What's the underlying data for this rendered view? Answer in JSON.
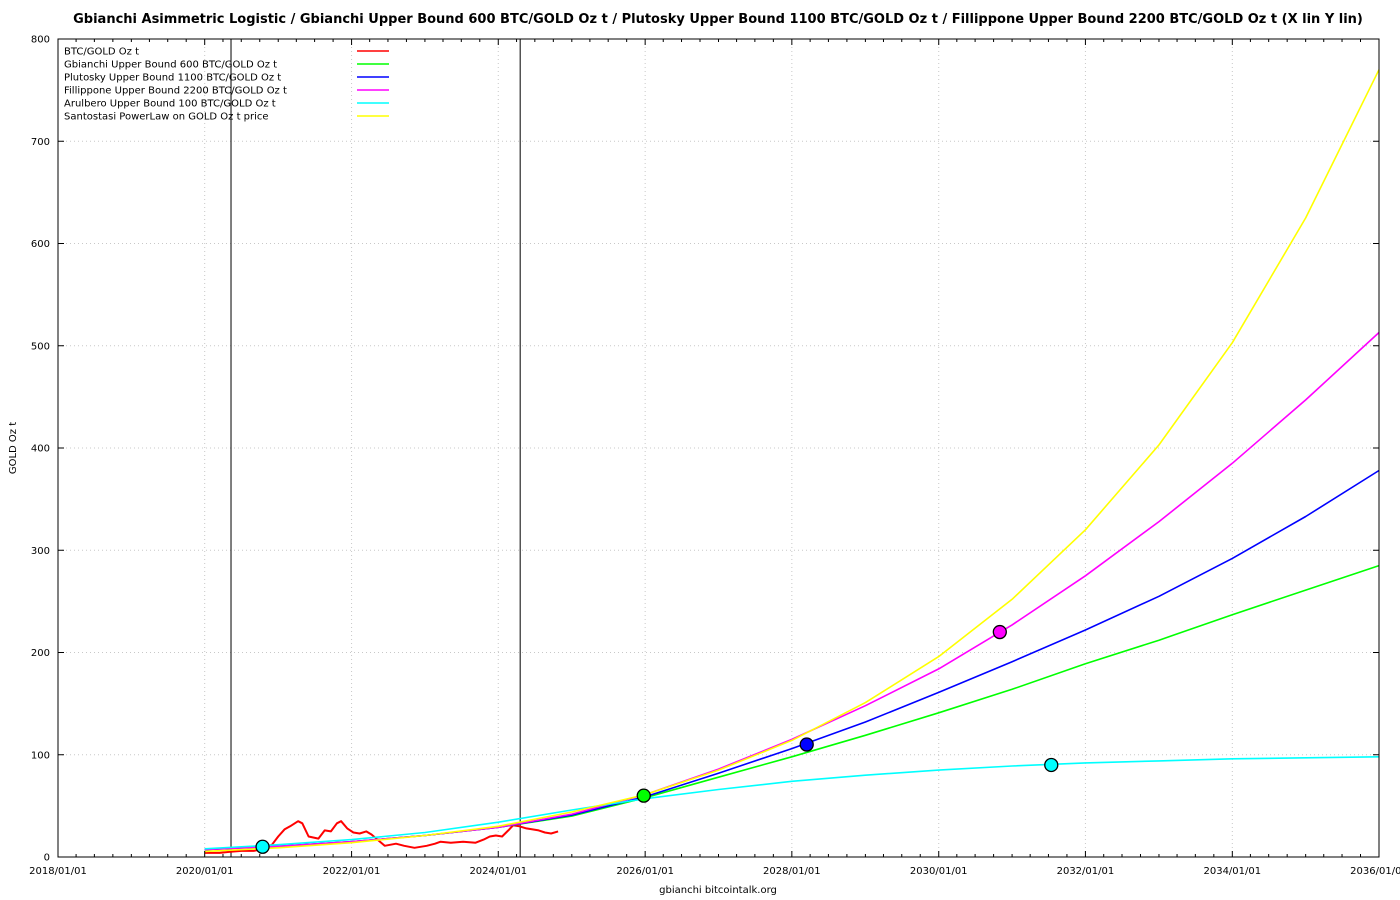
{
  "chart_data": {
    "type": "line",
    "title": "Gbianchi Asimmetric Logistic / Gbianchi Upper Bound 600  BTC/GOLD Oz t / Plutosky Upper Bound 1100  BTC/GOLD Oz t / Fillippone Upper Bound 2200  BTC/GOLD Oz t  (X lin Y lin)",
    "xlabel": "gbianchi bitcointalk.org",
    "ylabel": "GOLD Oz t",
    "x_range": [
      "2018/01/01",
      "2036/01/01"
    ],
    "ylim": [
      0,
      800
    ],
    "x_ticks": [
      "2018/01/01",
      "2020/01/01",
      "2022/01/01",
      "2024/01/01",
      "2026/01/01",
      "2028/01/01",
      "2030/01/01",
      "2032/01/01",
      "2034/01/01",
      "2036/01/01"
    ],
    "y_ticks": [
      0,
      100,
      200,
      300,
      400,
      500,
      600,
      700,
      800
    ],
    "grid": true,
    "legend_position": "top-left",
    "vertical_markers": [
      "2020/05/11",
      "2024/04/19"
    ],
    "series": [
      {
        "name": "BTC/GOLD Oz t",
        "color": "#ff0000",
        "points": [
          [
            "2020/01/01",
            4
          ],
          [
            "2020/03/15",
            4
          ],
          [
            "2020/05/01",
            5
          ],
          [
            "2020/07/01",
            6
          ],
          [
            "2020/09/01",
            6
          ],
          [
            "2020/10/20",
            8
          ],
          [
            "2020/12/01",
            12
          ],
          [
            "2021/01/01",
            20
          ],
          [
            "2021/02/01",
            27
          ],
          [
            "2021/03/01",
            30
          ],
          [
            "2021/04/10",
            35
          ],
          [
            "2021/05/01",
            33
          ],
          [
            "2021/06/01",
            20
          ],
          [
            "2021/07/20",
            18
          ],
          [
            "2021/08/20",
            26
          ],
          [
            "2021/09/20",
            25
          ],
          [
            "2021/10/20",
            33
          ],
          [
            "2021/11/10",
            35
          ],
          [
            "2021/12/10",
            28
          ],
          [
            "2022/01/10",
            24
          ],
          [
            "2022/02/10",
            23
          ],
          [
            "2022/03/15",
            25
          ],
          [
            "2022/04/10",
            22
          ],
          [
            "2022/05/10",
            17
          ],
          [
            "2022/06/15",
            11
          ],
          [
            "2022/08/10",
            13
          ],
          [
            "2022/09/20",
            11
          ],
          [
            "2022/11/10",
            9
          ],
          [
            "2023/01/10",
            11
          ],
          [
            "2023/02/20",
            13
          ],
          [
            "2023/03/20",
            15
          ],
          [
            "2023/05/10",
            14
          ],
          [
            "2023/07/10",
            15
          ],
          [
            "2023/09/10",
            14
          ],
          [
            "2023/10/20",
            17
          ],
          [
            "2023/11/20",
            20
          ],
          [
            "2023/12/20",
            21
          ],
          [
            "2024/01/20",
            20
          ],
          [
            "2024/02/20",
            26
          ],
          [
            "2024/03/15",
            31
          ],
          [
            "2024/04/15",
            30
          ],
          [
            "2024/05/20",
            28
          ],
          [
            "2024/06/20",
            27
          ],
          [
            "2024/07/20",
            26
          ],
          [
            "2024/08/20",
            24
          ],
          [
            "2024/09/20",
            23
          ],
          [
            "2024/10/25",
            25
          ]
        ]
      },
      {
        "name": "Gbianchi Upper Bound 600  BTC/GOLD Oz t",
        "color": "#00ff00",
        "points": [
          [
            "2020/01/01",
            7.2
          ],
          [
            "2021/01/01",
            10.5
          ],
          [
            "2022/01/01",
            15
          ],
          [
            "2023/01/01",
            21
          ],
          [
            "2024/01/01",
            29
          ],
          [
            "2025/01/01",
            40
          ],
          [
            "2026/01/01",
            58
          ],
          [
            "2027/01/01",
            78
          ],
          [
            "2028/01/01",
            98
          ],
          [
            "2029/01/01",
            119
          ],
          [
            "2030/01/01",
            141
          ],
          [
            "2031/01/01",
            164
          ],
          [
            "2032/01/01",
            189
          ],
          [
            "2033/01/01",
            212
          ],
          [
            "2034/01/01",
            237
          ],
          [
            "2035/01/01",
            261
          ],
          [
            "2036/01/01",
            285
          ]
        ]
      },
      {
        "name": "Plutosky Upper Bound 1100  BTC/GOLD Oz t",
        "color": "#0000ff",
        "points": [
          [
            "2020/01/01",
            7.2
          ],
          [
            "2021/01/01",
            10.5
          ],
          [
            "2022/01/01",
            15
          ],
          [
            "2023/01/01",
            21
          ],
          [
            "2024/01/01",
            29
          ],
          [
            "2025/01/01",
            41
          ],
          [
            "2026/01/01",
            59
          ],
          [
            "2027/01/01",
            82
          ],
          [
            "2028/01/01",
            106
          ],
          [
            "2029/01/01",
            132
          ],
          [
            "2030/01/01",
            161
          ],
          [
            "2031/01/01",
            191
          ],
          [
            "2032/01/01",
            222
          ],
          [
            "2033/01/01",
            255
          ],
          [
            "2034/01/01",
            292
          ],
          [
            "2035/01/01",
            333
          ],
          [
            "2036/01/01",
            378
          ]
        ]
      },
      {
        "name": "Fillippone Upper Bound 2200  BTC/GOLD Oz t",
        "color": "#ff00ff",
        "points": [
          [
            "2020/01/01",
            7.2
          ],
          [
            "2021/01/01",
            10.5
          ],
          [
            "2022/01/01",
            15
          ],
          [
            "2023/01/01",
            21
          ],
          [
            "2024/01/01",
            29
          ],
          [
            "2025/01/01",
            42
          ],
          [
            "2026/01/01",
            61
          ],
          [
            "2027/01/01",
            86
          ],
          [
            "2028/01/01",
            115
          ],
          [
            "2029/01/01",
            148
          ],
          [
            "2030/01/01",
            184
          ],
          [
            "2031/01/01",
            227
          ],
          [
            "2032/01/01",
            275
          ],
          [
            "2033/01/01",
            328
          ],
          [
            "2034/01/01",
            385
          ],
          [
            "2035/01/01",
            447
          ],
          [
            "2036/01/01",
            513
          ]
        ]
      },
      {
        "name": "Arulbero Upper Bound 100  BTC/GOLD Oz t",
        "color": "#00ffff",
        "points": [
          [
            "2020/01/01",
            8
          ],
          [
            "2021/01/01",
            12
          ],
          [
            "2022/01/01",
            17
          ],
          [
            "2023/01/01",
            24
          ],
          [
            "2024/01/01",
            34
          ],
          [
            "2025/01/01",
            46
          ],
          [
            "2026/01/01",
            57
          ],
          [
            "2027/01/01",
            66
          ],
          [
            "2028/01/01",
            74
          ],
          [
            "2029/01/01",
            80
          ],
          [
            "2030/01/01",
            85
          ],
          [
            "2031/01/01",
            89
          ],
          [
            "2032/01/01",
            92
          ],
          [
            "2033/01/01",
            94
          ],
          [
            "2034/01/01",
            96
          ],
          [
            "2035/01/01",
            97
          ],
          [
            "2036/01/01",
            98
          ]
        ]
      },
      {
        "name": "Santostasi PowerLaw on GOLD Oz t price",
        "color": "#ffff00",
        "points": [
          [
            "2020/01/01",
            5.5
          ],
          [
            "2021/01/01",
            9
          ],
          [
            "2022/01/01",
            14
          ],
          [
            "2023/01/01",
            21
          ],
          [
            "2024/01/01",
            30
          ],
          [
            "2025/01/01",
            44
          ],
          [
            "2026/01/01",
            61
          ],
          [
            "2027/01/01",
            85
          ],
          [
            "2028/01/01",
            114
          ],
          [
            "2029/01/01",
            151
          ],
          [
            "2030/01/01",
            196
          ],
          [
            "2031/01/01",
            252
          ],
          [
            "2032/01/01",
            320
          ],
          [
            "2033/01/01",
            403
          ],
          [
            "2034/01/01",
            503
          ],
          [
            "2035/01/01",
            625
          ],
          [
            "2036/01/01",
            770
          ]
        ]
      }
    ],
    "markers": [
      {
        "x": "2020/10/15",
        "y": 10,
        "color": "#00ffff"
      },
      {
        "x": "2025/12/25",
        "y": 60,
        "color": "#00ff00"
      },
      {
        "x": "2028/03/15",
        "y": 110,
        "color": "#0000ff"
      },
      {
        "x": "2030/11/01",
        "y": 220,
        "color": "#ff00ff"
      },
      {
        "x": "2031/07/15",
        "y": 90,
        "color": "#00ffff"
      }
    ]
  }
}
